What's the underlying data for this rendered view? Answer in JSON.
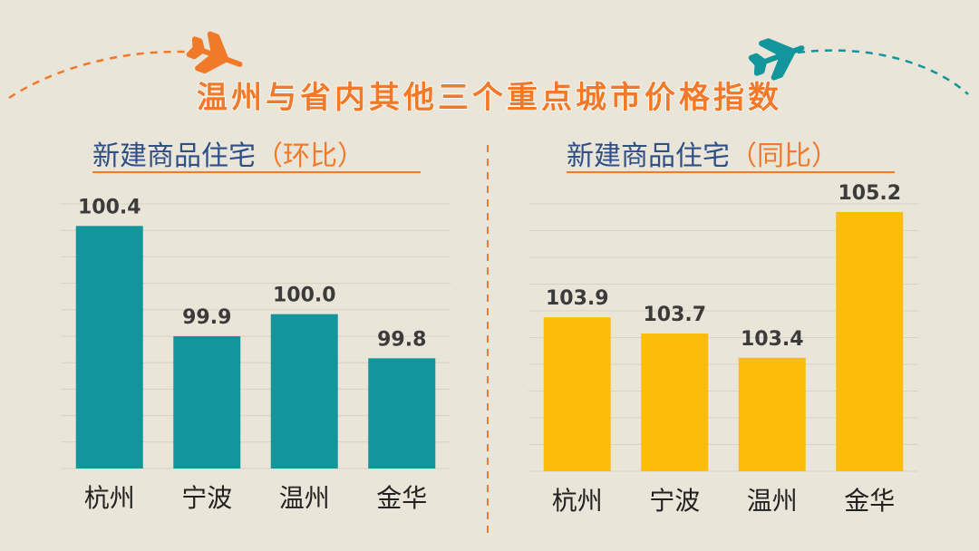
{
  "title": "温州与省内其他三个重点城市价格指数",
  "colors": {
    "background": "#e9e5d8",
    "title_fill": "#f07a2a",
    "subtitle_main": "#2f4f86",
    "subtitle_paren": "#f07a2a",
    "left_bars": "#13969b",
    "right_bars": "#fbbd0a",
    "value_text": "#3b3b3b",
    "category_text": "#222222",
    "plane_left": "#f07a2a",
    "plane_right": "#13969b"
  },
  "icons": {
    "left": "airplane-icon",
    "right": "airplane-icon"
  },
  "chart_data": [
    {
      "type": "bar",
      "subtitle_main": "新建商品住宅",
      "subtitle_paren": "（环比）",
      "categories": [
        "杭州",
        "宁波",
        "温州",
        "金华"
      ],
      "values": [
        100.4,
        99.9,
        100.0,
        99.8
      ],
      "value_labels": [
        "100.4",
        "99.9",
        "100.0",
        "99.8"
      ],
      "ylim": [
        99.3,
        100.5
      ],
      "grid": true
    },
    {
      "type": "bar",
      "subtitle_main": "新建商品住宅",
      "subtitle_paren": "（同比）",
      "categories": [
        "杭州",
        "宁波",
        "温州",
        "金华"
      ],
      "values": [
        103.9,
        103.7,
        103.4,
        105.2
      ],
      "value_labels": [
        "103.9",
        "103.7",
        "103.4",
        "105.2"
      ],
      "ylim": [
        102.0,
        105.3
      ],
      "grid": true
    }
  ]
}
